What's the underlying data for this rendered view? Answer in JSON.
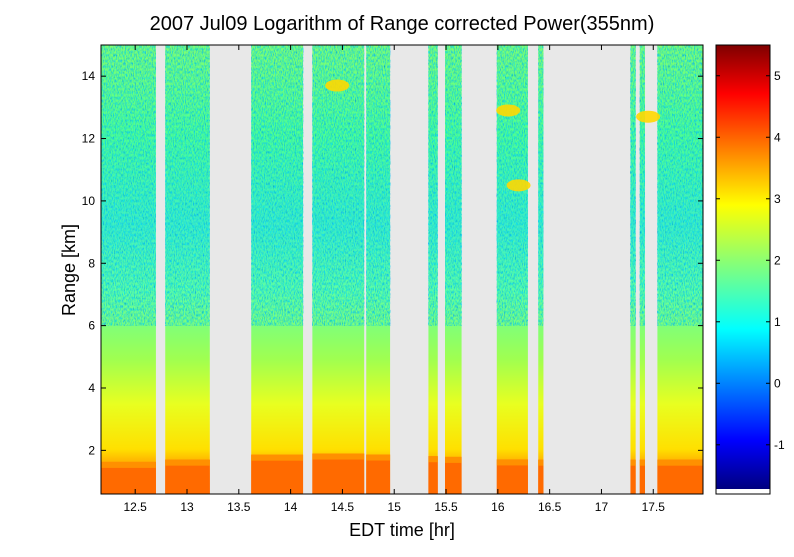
{
  "chart_data": {
    "type": "heatmap",
    "title": "2007 Jul09  Logarithm of Range corrected Power(355nm)",
    "xlabel": "EDT time [hr]",
    "ylabel": "Range [km]",
    "xlim": [
      12.17,
      17.98
    ],
    "ylim": [
      0.6,
      15.0
    ],
    "x_ticks": [
      "12.5",
      "13",
      "13.5",
      "14",
      "14.5",
      "15",
      "15.5",
      "16",
      "16.5",
      "17",
      "17.5"
    ],
    "x_tick_values": [
      12.5,
      13,
      13.5,
      14,
      14.5,
      15,
      15.5,
      16,
      16.5,
      17,
      17.5
    ],
    "y_ticks": [
      "2",
      "4",
      "6",
      "8",
      "10",
      "12",
      "14"
    ],
    "y_tick_values": [
      2,
      4,
      6,
      8,
      10,
      12,
      14
    ],
    "colorbar": {
      "range": [
        -1.8,
        5.5
      ],
      "ticks": [
        "-1",
        "0",
        "1",
        "2",
        "3",
        "4",
        "5"
      ],
      "tick_values": [
        -1,
        0,
        1,
        2,
        3,
        4,
        5
      ],
      "colormap": "jet"
    },
    "no_data_color": "#e8e8e8",
    "data_segments": [
      {
        "start": 12.17,
        "end": 12.7
      },
      {
        "start": 12.79,
        "end": 13.22
      },
      {
        "start": 13.62,
        "end": 14.12
      },
      {
        "start": 14.21,
        "end": 14.71
      },
      {
        "start": 14.73,
        "end": 14.96
      },
      {
        "start": 15.33,
        "end": 15.42
      },
      {
        "start": 15.49,
        "end": 15.65
      },
      {
        "start": 15.99,
        "end": 16.29
      },
      {
        "start": 16.39,
        "end": 16.44
      },
      {
        "start": 17.28,
        "end": 17.33
      },
      {
        "start": 17.37,
        "end": 17.42
      },
      {
        "start": 17.54,
        "end": 17.98
      }
    ],
    "boundary_layer_top_km": [
      {
        "x": 12.2,
        "km": 1.6
      },
      {
        "x": 13.0,
        "km": 1.7
      },
      {
        "x": 13.7,
        "km": 1.85
      },
      {
        "x": 14.5,
        "km": 1.9
      },
      {
        "x": 15.5,
        "km": 1.8
      },
      {
        "x": 16.2,
        "km": 1.7
      },
      {
        "x": 17.8,
        "km": 1.7
      }
    ],
    "cloud_features": [
      {
        "x": 14.45,
        "km": 13.7
      },
      {
        "x": 16.1,
        "km": 12.9
      },
      {
        "x": 16.2,
        "km": 10.5
      },
      {
        "x": 17.45,
        "km": 12.7
      }
    ]
  }
}
